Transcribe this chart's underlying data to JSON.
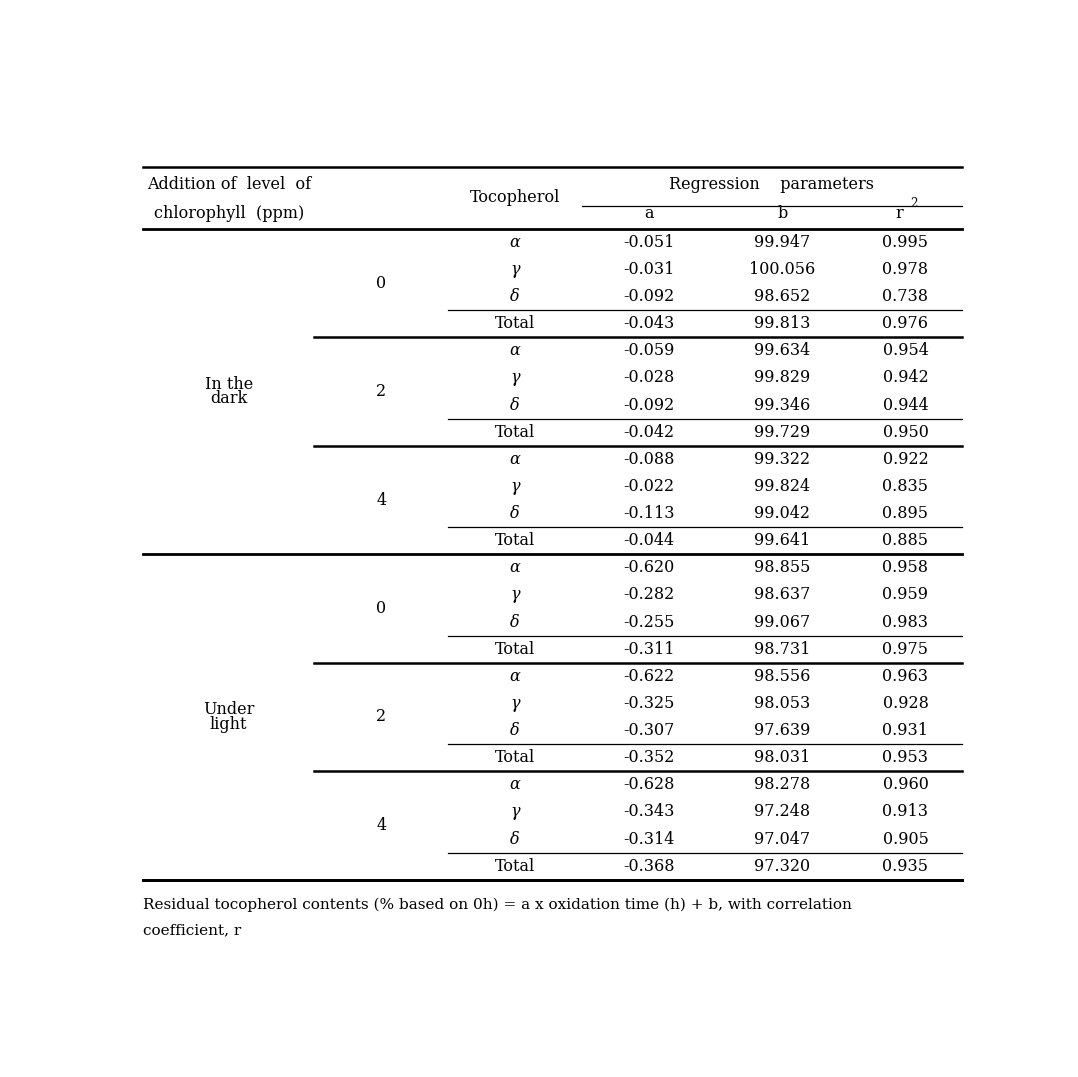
{
  "rows": [
    {
      "condition": "In the\ndark",
      "level": "0",
      "tocopherol": "α",
      "a": "-0.051",
      "b": "99.947",
      "r2": "0.995",
      "total_row": false
    },
    {
      "condition": "",
      "level": "",
      "tocopherol": "γ",
      "a": "-0.031",
      "b": "100.056",
      "r2": "0.978",
      "total_row": false
    },
    {
      "condition": "",
      "level": "",
      "tocopherol": "δ",
      "a": "-0.092",
      "b": "98.652",
      "r2": "0.738",
      "total_row": false
    },
    {
      "condition": "",
      "level": "",
      "tocopherol": "Total",
      "a": "-0.043",
      "b": "99.813",
      "r2": "0.976",
      "total_row": true
    },
    {
      "condition": "",
      "level": "2",
      "tocopherol": "α",
      "a": "-0.059",
      "b": "99.634",
      "r2": "0.954",
      "total_row": false
    },
    {
      "condition": "",
      "level": "",
      "tocopherol": "γ",
      "a": "-0.028",
      "b": "99.829",
      "r2": "0.942",
      "total_row": false
    },
    {
      "condition": "",
      "level": "",
      "tocopherol": "δ",
      "a": "-0.092",
      "b": "99.346",
      "r2": "0.944",
      "total_row": false
    },
    {
      "condition": "",
      "level": "",
      "tocopherol": "Total",
      "a": "-0.042",
      "b": "99.729",
      "r2": "0.950",
      "total_row": true
    },
    {
      "condition": "",
      "level": "4",
      "tocopherol": "α",
      "a": "-0.088",
      "b": "99.322",
      "r2": "0.922",
      "total_row": false
    },
    {
      "condition": "",
      "level": "",
      "tocopherol": "γ",
      "a": "-0.022",
      "b": "99.824",
      "r2": "0.835",
      "total_row": false
    },
    {
      "condition": "",
      "level": "",
      "tocopherol": "δ",
      "a": "-0.113",
      "b": "99.042",
      "r2": "0.895",
      "total_row": false
    },
    {
      "condition": "",
      "level": "",
      "tocopherol": "Total",
      "a": "-0.044",
      "b": "99.641",
      "r2": "0.885",
      "total_row": true
    },
    {
      "condition": "Under\nlight",
      "level": "0",
      "tocopherol": "α",
      "a": "-0.620",
      "b": "98.855",
      "r2": "0.958",
      "total_row": false
    },
    {
      "condition": "",
      "level": "",
      "tocopherol": "γ",
      "a": "-0.282",
      "b": "98.637",
      "r2": "0.959",
      "total_row": false
    },
    {
      "condition": "",
      "level": "",
      "tocopherol": "δ",
      "a": "-0.255",
      "b": "99.067",
      "r2": "0.983",
      "total_row": false
    },
    {
      "condition": "",
      "level": "",
      "tocopherol": "Total",
      "a": "-0.311",
      "b": "98.731",
      "r2": "0.975",
      "total_row": true
    },
    {
      "condition": "",
      "level": "2",
      "tocopherol": "α",
      "a": "-0.622",
      "b": "98.556",
      "r2": "0.963",
      "total_row": false
    },
    {
      "condition": "",
      "level": "",
      "tocopherol": "γ",
      "a": "-0.325",
      "b": "98.053",
      "r2": "0.928",
      "total_row": false
    },
    {
      "condition": "",
      "level": "",
      "tocopherol": "δ",
      "a": "-0.307",
      "b": "97.639",
      "r2": "0.931",
      "total_row": false
    },
    {
      "condition": "",
      "level": "",
      "tocopherol": "Total",
      "a": "-0.352",
      "b": "98.031",
      "r2": "0.953",
      "total_row": true
    },
    {
      "condition": "",
      "level": "4",
      "tocopherol": "α",
      "a": "-0.628",
      "b": "98.278",
      "r2": "0.960",
      "total_row": false
    },
    {
      "condition": "",
      "level": "",
      "tocopherol": "γ",
      "a": "-0.343",
      "b": "97.248",
      "r2": "0.913",
      "total_row": false
    },
    {
      "condition": "",
      "level": "",
      "tocopherol": "δ",
      "a": "-0.314",
      "b": "97.047",
      "r2": "0.905",
      "total_row": false
    },
    {
      "condition": "",
      "level": "",
      "tocopherol": "Total",
      "a": "-0.368",
      "b": "97.320",
      "r2": "0.935",
      "total_row": true
    }
  ],
  "condition_groups": [
    {
      "label": "In the\ndark",
      "start": 0,
      "end": 11
    },
    {
      "label": "Under\nlight",
      "start": 12,
      "end": 23
    }
  ],
  "level_groups": [
    {
      "label": "0",
      "start": 0,
      "end": 3
    },
    {
      "label": "2",
      "start": 4,
      "end": 7
    },
    {
      "label": "4",
      "start": 8,
      "end": 11
    },
    {
      "label": "0",
      "start": 12,
      "end": 15
    },
    {
      "label": "2",
      "start": 16,
      "end": 19
    },
    {
      "label": "4",
      "start": 20,
      "end": 23
    }
  ],
  "footnote_line1": "Residual tocopherol contents (% based on 0h) = a x oxidation time (h) + b, with correlation",
  "footnote_line2": "coefficient, r"
}
